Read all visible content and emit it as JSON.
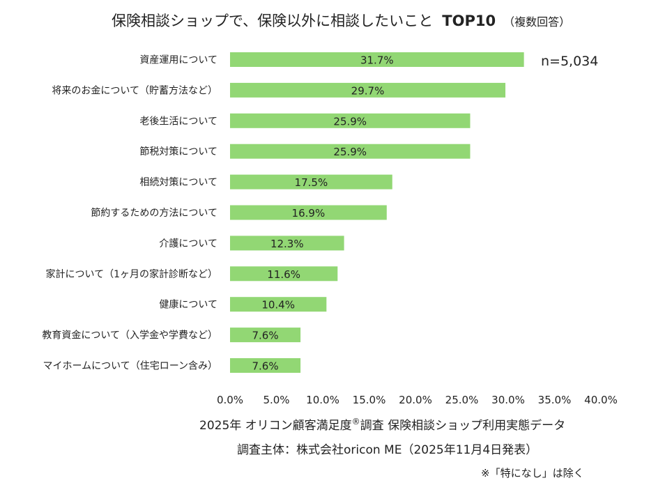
{
  "chart_data": {
    "type": "bar",
    "orientation": "horizontal",
    "title": "保険相談ショップで、保険以外に相談したいこと",
    "title_top": "TOP10",
    "title_sub": "（複数回答）",
    "n_label": "n=5,034",
    "categories": [
      "資産運用について",
      "将来のお金について（貯蓄方法など）",
      "老後生活について",
      "節税対策について",
      "相続対策について",
      "節約するための方法について",
      "介護について",
      "家計について（1ヶ月の家計診断など）",
      "健康について",
      "教育資金について（入学金や学費など）",
      "マイホームについて（住宅ローン含み）"
    ],
    "values": [
      31.7,
      29.7,
      25.9,
      25.9,
      17.5,
      16.9,
      12.3,
      11.6,
      10.4,
      7.6,
      7.6
    ],
    "value_labels": [
      "31.7%",
      "29.7%",
      "25.9%",
      "25.9%",
      "17.5%",
      "16.9%",
      "12.3%",
      "11.6%",
      "10.4%",
      "7.6%",
      "7.6%"
    ],
    "xlim": [
      0,
      40
    ],
    "xticks": [
      0,
      5,
      10,
      15,
      20,
      25,
      30,
      35,
      40
    ],
    "xtick_labels": [
      "0.0%",
      "5.0%",
      "10.0%",
      "15.0%",
      "20.0%",
      "25.0%",
      "30.0%",
      "35.0%",
      "40.0%"
    ],
    "grid": false,
    "bar_color": "#92d774"
  },
  "footer": {
    "line1_a": "2025年 オリコン顧客満足度",
    "line1_reg": "®",
    "line1_b": "調査 保険相談ショップ利用実態データ",
    "line2": "調査主体：株式会社oricon ME（2025年11月4日発表）",
    "note": "※「特になし」は除く"
  }
}
